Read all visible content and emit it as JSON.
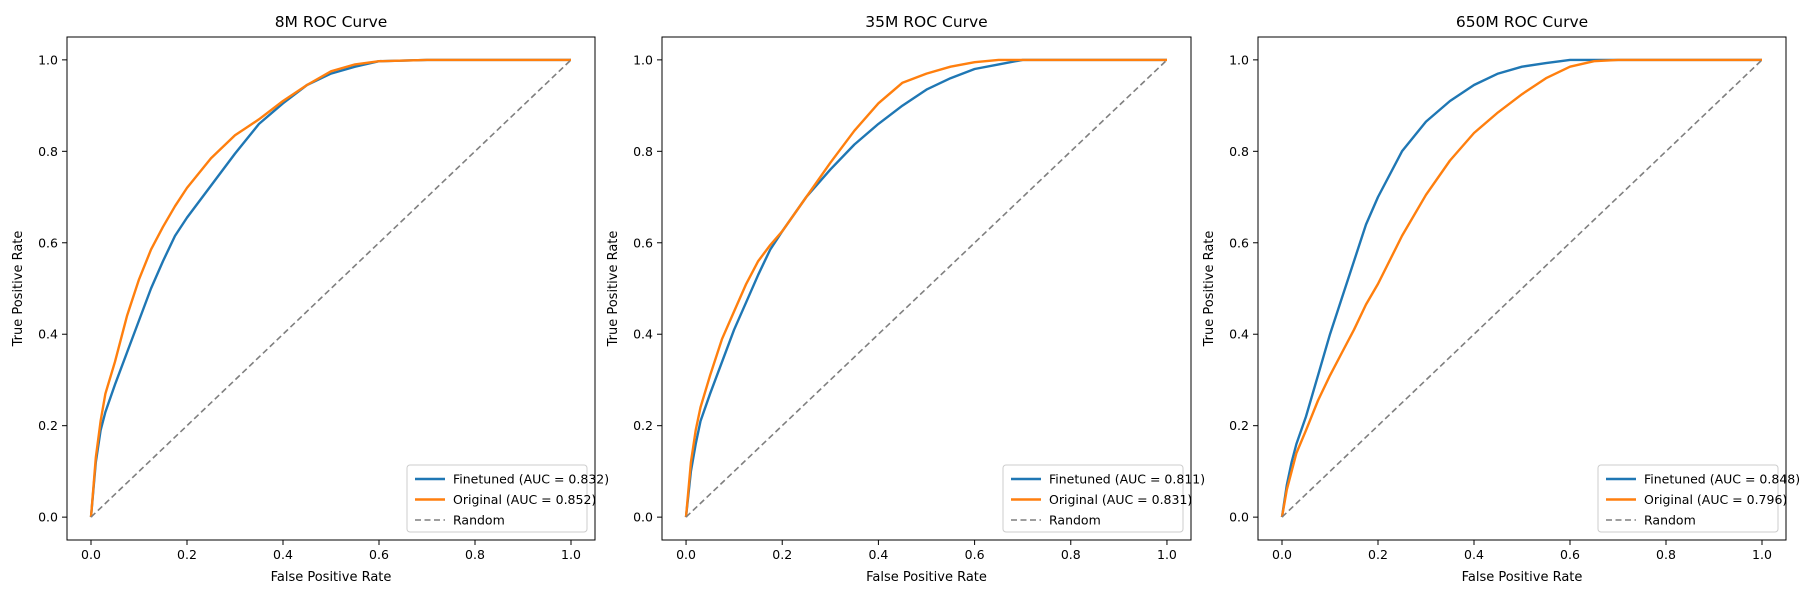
{
  "colors": {
    "finetuned": "#1f77b4",
    "original": "#ff7f0e",
    "random": "#7f7f7f"
  },
  "chart_data": [
    {
      "type": "line",
      "title": "8M ROC Curve",
      "xlabel": "False Positive Rate",
      "ylabel": "True Positive Rate",
      "xlim": [
        -0.05,
        1.05
      ],
      "ylim": [
        -0.05,
        1.05
      ],
      "xticks": [
        "0.0",
        "0.2",
        "0.4",
        "0.6",
        "0.8",
        "1.0"
      ],
      "yticks": [
        "0.0",
        "0.2",
        "0.4",
        "0.6",
        "0.8",
        "1.0"
      ],
      "legend_position": "lower-right",
      "series": [
        {
          "name": "Finetuned (AUC = 0.832)",
          "color_key": "finetuned",
          "style": "solid",
          "x": [
            0,
            0.01,
            0.02,
            0.03,
            0.05,
            0.075,
            0.1,
            0.125,
            0.15,
            0.175,
            0.2,
            0.25,
            0.3,
            0.35,
            0.4,
            0.45,
            0.5,
            0.55,
            0.6,
            0.7,
            0.8,
            1.0
          ],
          "y": [
            0,
            0.12,
            0.19,
            0.23,
            0.29,
            0.36,
            0.43,
            0.5,
            0.56,
            0.615,
            0.655,
            0.725,
            0.795,
            0.86,
            0.905,
            0.945,
            0.97,
            0.985,
            0.997,
            1.0,
            1.0,
            1.0
          ]
        },
        {
          "name": "Original (AUC = 0.852)",
          "color_key": "original",
          "style": "solid",
          "x": [
            0,
            0.01,
            0.02,
            0.03,
            0.05,
            0.075,
            0.1,
            0.125,
            0.15,
            0.175,
            0.2,
            0.25,
            0.3,
            0.35,
            0.4,
            0.45,
            0.5,
            0.55,
            0.6,
            0.7,
            0.8,
            1.0
          ],
          "y": [
            0,
            0.13,
            0.21,
            0.27,
            0.34,
            0.44,
            0.52,
            0.585,
            0.635,
            0.68,
            0.72,
            0.785,
            0.835,
            0.87,
            0.91,
            0.945,
            0.975,
            0.99,
            0.997,
            1.0,
            1.0,
            1.0
          ]
        },
        {
          "name": "Random",
          "color_key": "random",
          "style": "dashed",
          "x": [
            0,
            1
          ],
          "y": [
            0,
            1
          ]
        }
      ]
    },
    {
      "type": "line",
      "title": "35M ROC Curve",
      "xlabel": "False Positive Rate",
      "ylabel": "True Positive Rate",
      "xlim": [
        -0.05,
        1.05
      ],
      "ylim": [
        -0.05,
        1.05
      ],
      "xticks": [
        "0.0",
        "0.2",
        "0.4",
        "0.6",
        "0.8",
        "1.0"
      ],
      "yticks": [
        "0.0",
        "0.2",
        "0.4",
        "0.6",
        "0.8",
        "1.0"
      ],
      "legend_position": "lower-right",
      "series": [
        {
          "name": "Finetuned (AUC = 0.811)",
          "color_key": "finetuned",
          "style": "solid",
          "x": [
            0,
            0.01,
            0.02,
            0.03,
            0.05,
            0.075,
            0.1,
            0.125,
            0.15,
            0.175,
            0.2,
            0.25,
            0.3,
            0.35,
            0.4,
            0.45,
            0.5,
            0.55,
            0.6,
            0.65,
            0.7,
            0.8,
            1.0
          ],
          "y": [
            0,
            0.1,
            0.16,
            0.21,
            0.27,
            0.34,
            0.41,
            0.47,
            0.53,
            0.585,
            0.625,
            0.7,
            0.76,
            0.815,
            0.86,
            0.9,
            0.935,
            0.96,
            0.98,
            0.99,
            1.0,
            1.0,
            1.0
          ]
        },
        {
          "name": "Original (AUC = 0.831)",
          "color_key": "original",
          "style": "solid",
          "x": [
            0,
            0.01,
            0.02,
            0.03,
            0.05,
            0.075,
            0.1,
            0.125,
            0.15,
            0.175,
            0.2,
            0.25,
            0.3,
            0.35,
            0.4,
            0.45,
            0.5,
            0.55,
            0.6,
            0.65,
            0.7,
            0.8,
            1.0
          ],
          "y": [
            0,
            0.12,
            0.19,
            0.24,
            0.31,
            0.39,
            0.45,
            0.51,
            0.56,
            0.595,
            0.625,
            0.7,
            0.775,
            0.845,
            0.905,
            0.95,
            0.97,
            0.985,
            0.995,
            1.0,
            1.0,
            1.0,
            1.0
          ]
        },
        {
          "name": "Random",
          "color_key": "random",
          "style": "dashed",
          "x": [
            0,
            1
          ],
          "y": [
            0,
            1
          ]
        }
      ]
    },
    {
      "type": "line",
      "title": "650M ROC Curve",
      "xlabel": "False Positive Rate",
      "ylabel": "True Positive Rate",
      "xlim": [
        -0.05,
        1.05
      ],
      "ylim": [
        -0.05,
        1.05
      ],
      "xticks": [
        "0.0",
        "0.2",
        "0.4",
        "0.6",
        "0.8",
        "1.0"
      ],
      "yticks": [
        "0.0",
        "0.2",
        "0.4",
        "0.6",
        "0.8",
        "1.0"
      ],
      "legend_position": "lower-right",
      "series": [
        {
          "name": "Finetuned (AUC = 0.848)",
          "color_key": "finetuned",
          "style": "solid",
          "x": [
            0,
            0.01,
            0.02,
            0.03,
            0.05,
            0.075,
            0.1,
            0.125,
            0.15,
            0.175,
            0.2,
            0.25,
            0.3,
            0.35,
            0.4,
            0.45,
            0.5,
            0.55,
            0.6,
            0.65,
            0.7,
            0.8,
            1.0
          ],
          "y": [
            0,
            0.07,
            0.12,
            0.16,
            0.22,
            0.31,
            0.4,
            0.48,
            0.56,
            0.64,
            0.7,
            0.8,
            0.865,
            0.91,
            0.945,
            0.97,
            0.985,
            0.993,
            1.0,
            1.0,
            1.0,
            1.0,
            1.0
          ]
        },
        {
          "name": "Original (AUC = 0.796)",
          "color_key": "original",
          "style": "solid",
          "x": [
            0,
            0.01,
            0.02,
            0.03,
            0.05,
            0.075,
            0.1,
            0.125,
            0.15,
            0.175,
            0.2,
            0.25,
            0.3,
            0.35,
            0.4,
            0.45,
            0.5,
            0.55,
            0.6,
            0.65,
            0.7,
            0.8,
            1.0
          ],
          "y": [
            0,
            0.06,
            0.1,
            0.14,
            0.19,
            0.255,
            0.31,
            0.36,
            0.41,
            0.465,
            0.51,
            0.615,
            0.705,
            0.78,
            0.84,
            0.885,
            0.925,
            0.96,
            0.985,
            0.997,
            1.0,
            1.0,
            1.0
          ]
        },
        {
          "name": "Random",
          "color_key": "random",
          "style": "dashed",
          "x": [
            0,
            1
          ],
          "y": [
            0,
            1
          ]
        }
      ]
    }
  ]
}
